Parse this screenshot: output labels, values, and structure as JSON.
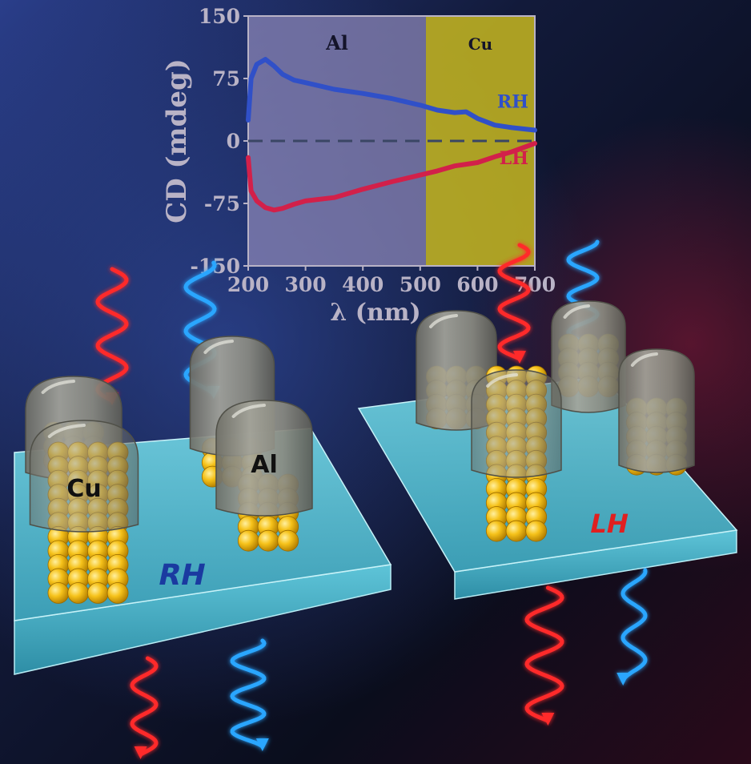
{
  "chart_data": {
    "type": "line",
    "xlabel": "λ (nm)",
    "ylabel": "CD (mdeg)",
    "xlim": [
      200,
      700
    ],
    "ylim": [
      -150,
      150
    ],
    "x_ticks": [
      "200",
      "300",
      "400",
      "500",
      "600",
      "700"
    ],
    "y_ticks": [
      "150",
      "75",
      "0",
      "-75",
      "-150"
    ],
    "regions": [
      {
        "label": "Al",
        "from": 200,
        "to": 510,
        "color": "#8d88b8"
      },
      {
        "label": "Cu",
        "from": 510,
        "to": 700,
        "color": "#c8b820"
      }
    ],
    "series": [
      {
        "name": "RH",
        "color": "#3050c8",
        "x": [
          200,
          205,
          215,
          230,
          245,
          260,
          280,
          300,
          350,
          400,
          450,
          500,
          530,
          560,
          580,
          600,
          630,
          660,
          700
        ],
        "y": [
          25,
          75,
          92,
          98,
          90,
          80,
          73,
          70,
          62,
          57,
          51,
          43,
          37,
          34,
          35,
          27,
          19,
          16,
          13
        ]
      },
      {
        "name": "LH",
        "color": "#d2204a",
        "x": [
          200,
          205,
          215,
          230,
          245,
          260,
          280,
          300,
          350,
          400,
          450,
          500,
          530,
          560,
          580,
          600,
          630,
          660,
          700
        ],
        "y": [
          -20,
          -60,
          -72,
          -80,
          -83,
          -81,
          -76,
          -72,
          -68,
          -58,
          -49,
          -41,
          -36,
          -30,
          -28,
          -26,
          -19,
          -13,
          -3
        ]
      }
    ],
    "baseline": 0,
    "grid": false,
    "legend": "inline"
  },
  "scene": {
    "label_cu": "Cu",
    "label_al": "Al",
    "plate_left_label": "RH",
    "plate_right_label": "LH",
    "colors": {
      "plate": "#4fb8cc",
      "gold": "#f2b712",
      "cap": "#8e8e84",
      "wave_red": "#ff2a2a",
      "wave_blue": "#2aa6ff"
    }
  }
}
